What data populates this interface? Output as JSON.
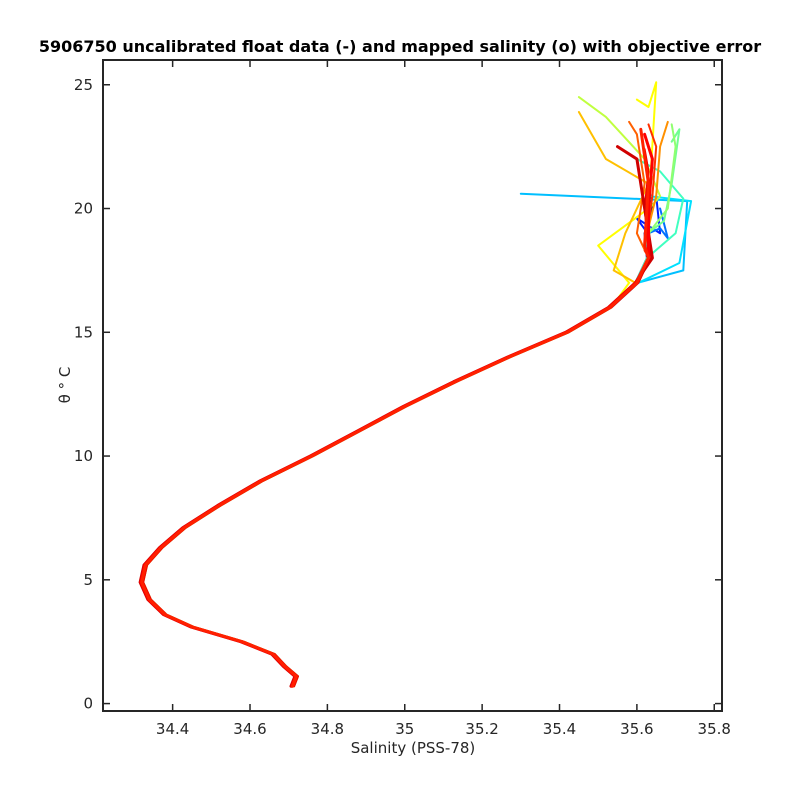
{
  "chart_data": {
    "type": "line",
    "title": "5906750 uncalibrated float data (-) and mapped salinity (o) with objective error",
    "xlabel": "Salinity (PSS-78)",
    "ylabel": "θ ° C",
    "xlim": [
      34.22,
      35.82
    ],
    "ylim": [
      -0.3,
      26
    ],
    "xticks": [
      "34.4",
      "34.6",
      "34.8",
      "35",
      "35.2",
      "35.4",
      "35.6",
      "35.8"
    ],
    "yticks": [
      "0",
      "5",
      "10",
      "15",
      "20",
      "25"
    ],
    "grid": false,
    "legend": "none",
    "colormap": "jet (profile number)",
    "base_profile": [
      [
        34.71,
        0.7
      ],
      [
        34.72,
        1.1
      ],
      [
        34.69,
        1.5
      ],
      [
        34.66,
        2.0
      ],
      [
        34.58,
        2.5
      ],
      [
        34.45,
        3.1
      ],
      [
        34.38,
        3.6
      ],
      [
        34.34,
        4.2
      ],
      [
        34.32,
        4.9
      ],
      [
        34.33,
        5.6
      ],
      [
        34.37,
        6.3
      ],
      [
        34.43,
        7.1
      ],
      [
        34.52,
        8.0
      ],
      [
        34.63,
        9.0
      ],
      [
        34.76,
        10.0
      ],
      [
        34.88,
        11.0
      ],
      [
        35.0,
        12.0
      ],
      [
        35.13,
        13.0
      ],
      [
        35.27,
        14.0
      ],
      [
        35.42,
        15.0
      ],
      [
        35.53,
        16.0
      ],
      [
        35.6,
        17.0
      ],
      [
        35.63,
        18.0
      ],
      [
        35.63,
        19.0
      ],
      [
        35.63,
        20.0
      ],
      [
        35.62,
        21.0
      ],
      [
        35.62,
        22.0
      ],
      [
        35.61,
        23.0
      ]
    ],
    "series": [
      {
        "color": "#00008f",
        "upper": [
          [
            35.62,
            19.0
          ],
          [
            35.64,
            20.0
          ],
          [
            35.63,
            21.0
          ]
        ]
      },
      {
        "color": "#0020ff",
        "upper": [
          [
            35.6,
            19.6
          ],
          [
            35.66,
            19.0
          ],
          [
            35.65,
            20.5
          ]
        ]
      },
      {
        "color": "#0070ff",
        "upper": [
          [
            35.66,
            19.2
          ],
          [
            35.68,
            18.8
          ],
          [
            35.66,
            20.0
          ]
        ]
      },
      {
        "color": "#00bfff",
        "upper": [
          [
            35.72,
            17.5
          ],
          [
            35.73,
            20.3
          ],
          [
            35.3,
            20.6
          ]
        ]
      },
      {
        "color": "#00e0ff",
        "upper": [
          [
            35.71,
            17.8
          ],
          [
            35.74,
            20.3
          ],
          [
            35.63,
            20.5
          ]
        ]
      },
      {
        "color": "#40ffc0",
        "upper": [
          [
            35.7,
            19.0
          ],
          [
            35.72,
            20.4
          ],
          [
            35.66,
            21.5
          ],
          [
            35.6,
            22.0
          ]
        ]
      },
      {
        "color": "#70ff90",
        "upper": [
          [
            35.67,
            19.5
          ],
          [
            35.69,
            21.0
          ],
          [
            35.71,
            23.2
          ],
          [
            35.69,
            22.7
          ]
        ]
      },
      {
        "color": "#90ff70",
        "upper": [
          [
            35.68,
            20.0
          ],
          [
            35.7,
            22.5
          ],
          [
            35.69,
            23.4
          ]
        ]
      },
      {
        "color": "#c0ff40",
        "upper": [
          [
            35.66,
            20.5
          ],
          [
            35.62,
            22.0
          ],
          [
            35.52,
            23.7
          ],
          [
            35.45,
            24.5
          ]
        ]
      },
      {
        "color": "#ffff00",
        "upper": [
          [
            35.58,
            17.0
          ],
          [
            35.5,
            18.5
          ],
          [
            35.63,
            20.0
          ],
          [
            35.65,
            25.1
          ],
          [
            35.63,
            24.1
          ],
          [
            35.6,
            24.4
          ]
        ]
      },
      {
        "color": "#ffc000",
        "upper": [
          [
            35.54,
            17.5
          ],
          [
            35.57,
            19.0
          ],
          [
            35.63,
            21.0
          ],
          [
            35.52,
            22.0
          ],
          [
            35.45,
            23.9
          ]
        ]
      },
      {
        "color": "#ff9000",
        "upper": [
          [
            35.62,
            18.6
          ],
          [
            35.65,
            20.5
          ],
          [
            35.66,
            22.5
          ],
          [
            35.68,
            23.5
          ]
        ]
      },
      {
        "color": "#ff6000",
        "upper": [
          [
            35.6,
            19.0
          ],
          [
            35.62,
            21.0
          ],
          [
            35.6,
            23.0
          ],
          [
            35.58,
            23.5
          ]
        ]
      },
      {
        "color": "#ff3000",
        "upper": [
          [
            35.62,
            18.3
          ],
          [
            35.64,
            20.5
          ],
          [
            35.65,
            22.5
          ],
          [
            35.63,
            23.4
          ]
        ]
      },
      {
        "color": "#ef0000",
        "upper": [
          [
            35.63,
            18.5
          ],
          [
            35.62,
            20.0
          ],
          [
            35.63,
            21.5
          ],
          [
            35.62,
            22.4
          ]
        ]
      },
      {
        "color": "#d00000",
        "upper": [
          [
            35.64,
            18.0
          ],
          [
            35.61,
            21.0
          ],
          [
            35.6,
            22.0
          ],
          [
            35.55,
            22.5
          ]
        ]
      },
      {
        "color": "#ff0000",
        "upper": [
          [
            35.63,
            18.0
          ],
          [
            35.63,
            20.0
          ],
          [
            35.64,
            22.0
          ],
          [
            35.62,
            23.0
          ]
        ]
      },
      {
        "color": "#ff2000",
        "upper": [
          [
            35.62,
            18.5
          ],
          [
            35.63,
            21.0
          ],
          [
            35.61,
            23.2
          ]
        ]
      }
    ]
  }
}
